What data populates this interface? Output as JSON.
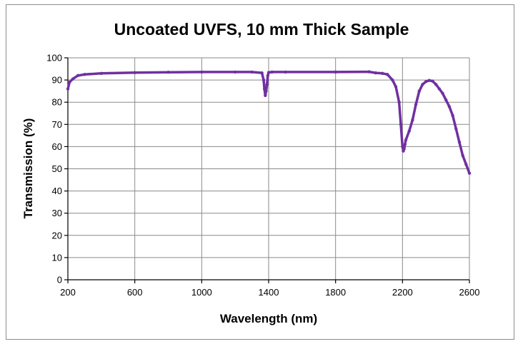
{
  "chart_data": {
    "type": "line",
    "title": "Uncoated UVFS, 10 mm Thick Sample",
    "xlabel": "Wavelength (nm)",
    "ylabel": "Transmission (%)",
    "xlim": [
      200,
      2600
    ],
    "ylim": [
      0,
      100
    ],
    "xticks": [
      200,
      600,
      1000,
      1400,
      1800,
      2200,
      2600
    ],
    "yticks": [
      0,
      10,
      20,
      30,
      40,
      50,
      60,
      70,
      80,
      90,
      100
    ],
    "grid": true,
    "legend": "none",
    "series": [
      {
        "color": "#7030a0",
        "x": [
          200,
          210,
          230,
          260,
          300,
          400,
          600,
          800,
          1000,
          1200,
          1300,
          1360,
          1370,
          1375,
          1380,
          1385,
          1390,
          1395,
          1400,
          1420,
          1500,
          1800,
          2000,
          2040,
          2080,
          2110,
          2140,
          2160,
          2180,
          2190,
          2200,
          2205,
          2210,
          2215,
          2220,
          2240,
          2260,
          2280,
          2300,
          2320,
          2340,
          2360,
          2380,
          2400,
          2420,
          2440,
          2460,
          2480,
          2500,
          2520,
          2540,
          2560,
          2580,
          2600
        ],
        "y": [
          86,
          89,
          90.5,
          92,
          92.5,
          93,
          93.3,
          93.5,
          93.6,
          93.6,
          93.6,
          93.2,
          90,
          86,
          83,
          85,
          88,
          92,
          93.4,
          93.6,
          93.6,
          93.6,
          93.7,
          93.2,
          93,
          92.5,
          90,
          87,
          80,
          70,
          60,
          58,
          59,
          61,
          63,
          67,
          72,
          79,
          85,
          88,
          89.3,
          89.8,
          89.5,
          88,
          86,
          84,
          81,
          78,
          74,
          68,
          62,
          56,
          52,
          48
        ]
      }
    ]
  }
}
